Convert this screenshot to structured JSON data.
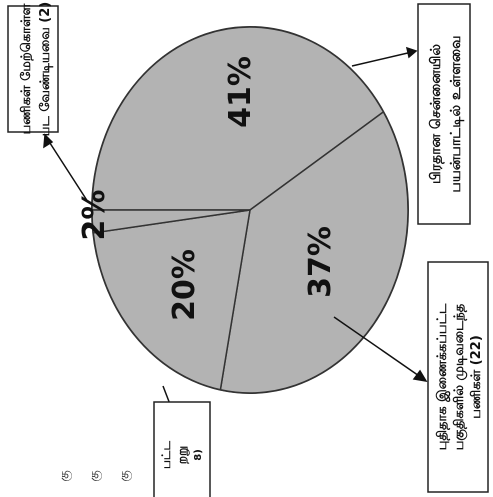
{
  "chart_data": {
    "type": "pie",
    "orientation": "rotated 90 degrees clockwise",
    "slices": [
      {
        "label": "பிரதான சென்னையில் பயன்பாட்டில் உள்ளவை",
        "value": 41,
        "display": "41%"
      },
      {
        "label": "புதிதாக இணைக்கப்பட்ட பகுதிகளில் முடிவடைந்த பணிகள்",
        "count_note": "(22)",
        "value": 37,
        "display": "37%"
      },
      {
        "label": "…பட்ட …றறு",
        "count_note": "8)",
        "value": 20,
        "display": "20%"
      },
      {
        "label": "பணிகள் மேற்கொள்ள பட வேண்டியவை",
        "count_note": "(2)",
        "value": 2,
        "display": "2%"
      }
    ],
    "colors": {
      "slice_fill": "#b3b3b3",
      "edge": "#333333"
    }
  },
  "callouts": {
    "top_right": {
      "line1": "பிரதான சென்னையில்",
      "line2": "பயன்பாட்டில் உள்ளவை"
    },
    "top_left": {
      "line1": "பணிகள் மேற்கொள்ள",
      "line2": "பட வேண்டியவை (2)"
    },
    "bottom_right": {
      "line1": "புதிதாக இணைக்கப்பட்ட",
      "line2": "பகுதிகளில் முடிவடைந்த",
      "line3": "பணிகள் (22)"
    },
    "bottom_left": {
      "line1": "பட்ட",
      "line2": "றறு",
      "line3": "8)"
    }
  },
  "margin_text": [
    "கு",
    "கு",
    "கு"
  ]
}
